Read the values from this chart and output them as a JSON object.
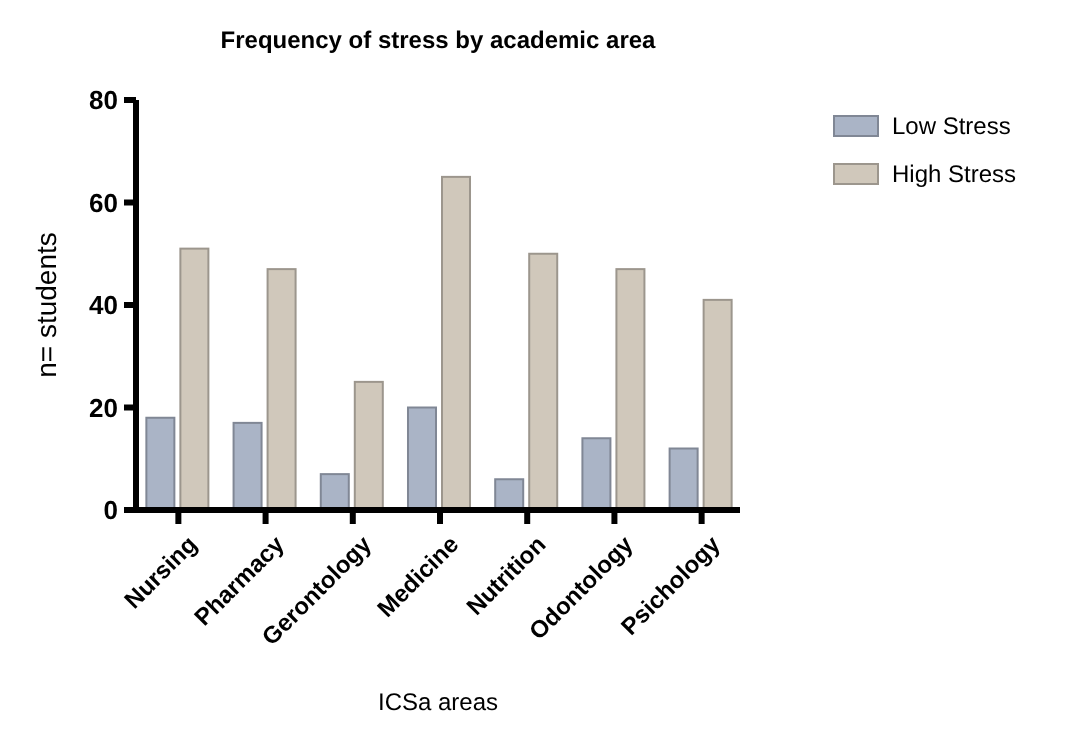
{
  "chart_data": {
    "type": "bar",
    "title": "Frequency of stress by academic area",
    "xlabel": "ICSa areas",
    "ylabel": "n= students",
    "categories": [
      "Nursing",
      "Pharmacy",
      "Gerontology",
      "Medicine",
      "Nutrition",
      "Odontology",
      "Psichology"
    ],
    "series": [
      {
        "name": "Low Stress",
        "color": "#aab4c6",
        "values": [
          18,
          17,
          7,
          20,
          6,
          14,
          12
        ]
      },
      {
        "name": "High Stress",
        "color": "#d0c8bb",
        "values": [
          51,
          47,
          25,
          65,
          50,
          47,
          41
        ]
      }
    ],
    "ylim": [
      0,
      80
    ],
    "yticks": [
      0,
      20,
      40,
      60,
      80
    ],
    "grid": false,
    "legend": "top right"
  }
}
